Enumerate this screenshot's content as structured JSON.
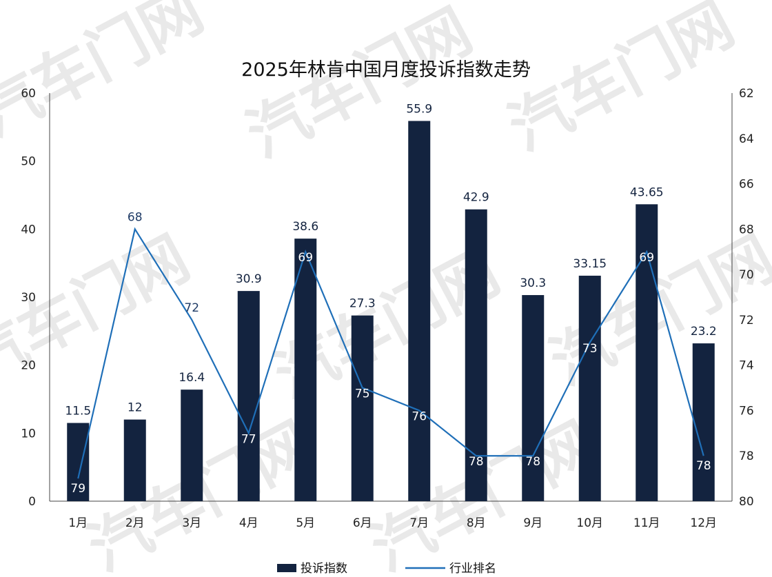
{
  "watermark": "汽车门网",
  "colors": {
    "bar": "#13233f",
    "line": "#1f6fb8",
    "bar_label_outside": "#13233f",
    "bar_label_inside": "#ffffff",
    "line_label_outside": "#1f3b66"
  },
  "chart_data": {
    "type": "bar",
    "title": "2025年林肯中国月度投诉指数走势",
    "categories": [
      "1月",
      "2月",
      "3月",
      "4月",
      "5月",
      "6月",
      "7月",
      "8月",
      "9月",
      "10月",
      "11月",
      "12月"
    ],
    "series": [
      {
        "name": "投诉指数",
        "type": "bar",
        "axis": "left",
        "values": [
          11.5,
          12,
          16.4,
          30.9,
          38.6,
          27.3,
          55.9,
          42.9,
          30.3,
          33.15,
          43.65,
          23.2
        ],
        "labels": [
          "11.5",
          "12",
          "16.4",
          "30.9",
          "38.6",
          "27.3",
          "55.9",
          "42.9",
          "30.3",
          "33.15",
          "43.65",
          "23.2"
        ]
      },
      {
        "name": "行业排名",
        "type": "line",
        "axis": "right",
        "values": [
          79,
          68,
          72,
          77,
          69,
          75,
          76,
          78,
          78,
          73,
          69,
          78
        ],
        "labels": [
          "79",
          "68",
          "72",
          "77",
          "69",
          "75",
          "76",
          "78",
          "78",
          "73",
          "69",
          "78"
        ]
      }
    ],
    "y_left": {
      "ylim": [
        0,
        60
      ],
      "ticks": [
        "0",
        "10",
        "20",
        "30",
        "40",
        "50",
        "60"
      ]
    },
    "y_right": {
      "ylim": [
        62,
        80
      ],
      "reversed": true,
      "ticks": [
        "62",
        "64",
        "66",
        "68",
        "70",
        "72",
        "74",
        "76",
        "78",
        "80"
      ]
    },
    "legend": {
      "placement": "bottom-center",
      "entries": [
        "投诉指数",
        "行业排名"
      ]
    },
    "grid": false
  }
}
